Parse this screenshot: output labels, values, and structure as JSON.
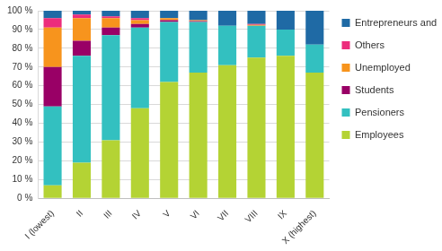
{
  "chart_data": {
    "type": "bar",
    "stacked": true,
    "grid": true,
    "legend": "right",
    "categories": [
      "I (lowest)",
      "II",
      "III",
      "IV",
      "V",
      "VI",
      "VII",
      "VIII",
      "IX",
      "X (highest)"
    ],
    "ylim": [
      0,
      100
    ],
    "yticks": [
      {
        "value": 0,
        "label": "0 %"
      },
      {
        "value": 10,
        "label": "10 %"
      },
      {
        "value": 20,
        "label": "20 %"
      },
      {
        "value": 30,
        "label": "30 %"
      },
      {
        "value": 40,
        "label": "40 %"
      },
      {
        "value": 50,
        "label": "50 %"
      },
      {
        "value": 60,
        "label": "60 %"
      },
      {
        "value": 70,
        "label": "70 %"
      },
      {
        "value": 80,
        "label": "80 %"
      },
      {
        "value": 90,
        "label": "90 %"
      },
      {
        "value": 100,
        "label": "100 %"
      }
    ],
    "series": [
      {
        "name": "Employees",
        "color": "#b4d334",
        "values": [
          7,
          19,
          31,
          48,
          62,
          67,
          71,
          75,
          76,
          67
        ]
      },
      {
        "name": "Pensioners",
        "color": "#33c0c0",
        "values": [
          42,
          57,
          56,
          43,
          32,
          27,
          21,
          17,
          14,
          15
        ]
      },
      {
        "name": "Students",
        "color": "#990066",
        "values": [
          21,
          8,
          4,
          2,
          1,
          0.5,
          0,
          0,
          0,
          0
        ]
      },
      {
        "name": "Unemployed",
        "color": "#f7941d",
        "values": [
          21,
          12,
          5,
          2,
          1,
          0.5,
          0,
          0.5,
          0,
          0
        ]
      },
      {
        "name": "Others",
        "color": "#ec2d7c",
        "values": [
          5,
          2,
          1,
          1,
          0,
          0,
          0,
          0.5,
          0,
          0
        ]
      },
      {
        "name": "Entrepreneurs and farmers",
        "color": "#1f6aa5",
        "values": [
          4,
          2,
          3,
          4,
          4,
          5,
          8,
          7,
          10,
          18
        ]
      }
    ]
  }
}
